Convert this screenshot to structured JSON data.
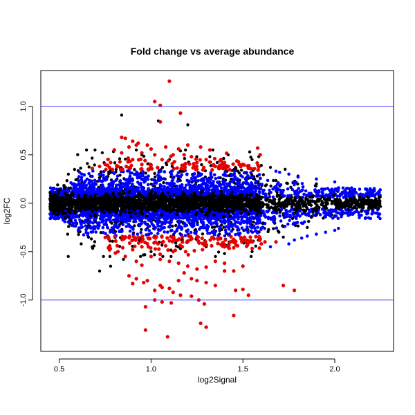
{
  "chart_data": {
    "type": "scatter",
    "title": "Fold change vs average abundance",
    "xlabel": "log2Signal",
    "ylabel": "log2FC",
    "xlim": [
      0.4,
      2.32
    ],
    "ylim": [
      -1.53,
      1.37
    ],
    "x_ticks": [
      0.5,
      1.0,
      1.5,
      2.0
    ],
    "x_tick_labels": [
      "0.5",
      "1.0",
      "1.5",
      "2.0"
    ],
    "y_ticks": [
      -1.0,
      -0.5,
      0.0,
      0.5,
      1.0
    ],
    "y_tick_labels": [
      "-1.0",
      "-0.5",
      "0.0",
      "0.5",
      "1.0"
    ],
    "hlines": [
      {
        "y": 1.0,
        "color": "#4040ff"
      },
      {
        "y": -1.0,
        "color": "#4040ff"
      }
    ],
    "grid": false,
    "legend": "none",
    "colors": {
      "black": "#000000",
      "blue": "#0000ff",
      "red": "#ee0000",
      "red_outline": "#cc0000"
    },
    "series": [
      {
        "color": "black",
        "points": [
          [
            0.84,
            0.91
          ],
          [
            1.04,
            0.85
          ],
          [
            1.2,
            0.81
          ],
          [
            0.92,
            0.55
          ],
          [
            0.95,
            0.5
          ],
          [
            1.16,
            0.54
          ],
          [
            1.32,
            0.48
          ],
          [
            1.36,
            0.42
          ],
          [
            1.42,
            0.5
          ],
          [
            1.55,
            0.45
          ],
          [
            1.6,
            0.39
          ],
          [
            1.65,
            0.37
          ],
          [
            0.55,
            0.3
          ],
          [
            0.6,
            0.25
          ],
          [
            0.78,
            0.34
          ],
          [
            0.88,
            0.44
          ],
          [
            1.0,
            0.4
          ],
          [
            1.1,
            0.45
          ],
          [
            1.73,
            0.35
          ],
          [
            1.8,
            0.28
          ],
          [
            1.9,
            0.2
          ],
          [
            2.0,
            0.13
          ],
          [
            2.1,
            0.08
          ],
          [
            2.2,
            0.03
          ],
          [
            0.72,
            -0.7
          ],
          [
            0.78,
            -0.65
          ],
          [
            0.85,
            -0.58
          ],
          [
            0.68,
            -0.45
          ],
          [
            0.62,
            -0.42
          ],
          [
            1.0,
            -0.5
          ],
          [
            1.16,
            -0.47
          ],
          [
            1.3,
            -0.45
          ],
          [
            1.4,
            -0.52
          ],
          [
            1.55,
            -0.5
          ],
          [
            1.72,
            -0.35
          ],
          [
            1.85,
            -0.25
          ],
          [
            2.0,
            -0.13
          ],
          [
            2.15,
            -0.05
          ]
        ],
        "band_samples": 2600
      },
      {
        "color": "blue",
        "band": "|log2FC| < 0.35, narrowing with signal",
        "points": [
          [
            1.65,
            -0.45
          ],
          [
            1.75,
            -0.42
          ],
          [
            1.78,
            -0.38
          ],
          [
            1.82,
            -0.36
          ],
          [
            1.85,
            -0.34
          ],
          [
            1.9,
            -0.32
          ],
          [
            1.95,
            -0.3
          ],
          [
            2.0,
            -0.28
          ],
          [
            1.7,
            0.32
          ],
          [
            1.75,
            0.3
          ],
          [
            1.8,
            0.27
          ],
          [
            1.9,
            0.25
          ],
          [
            2.0,
            0.22
          ],
          [
            2.02,
            -0.26
          ],
          [
            1.68,
            0.33
          ],
          [
            0.58,
            0.2
          ],
          [
            0.62,
            -0.22
          ]
        ],
        "band_samples": 2600
      },
      {
        "color": "red",
        "points": [
          [
            1.1,
            1.26
          ],
          [
            1.02,
            1.05
          ],
          [
            1.05,
            1.01
          ],
          [
            1.05,
            0.84
          ],
          [
            1.16,
            0.93
          ],
          [
            0.84,
            0.68
          ],
          [
            0.86,
            0.67
          ],
          [
            0.9,
            0.64
          ],
          [
            0.93,
            0.62
          ],
          [
            0.98,
            0.6
          ],
          [
            1.08,
            0.58
          ],
          [
            1.15,
            0.56
          ],
          [
            1.2,
            0.6
          ],
          [
            1.27,
            0.58
          ],
          [
            1.32,
            0.55
          ],
          [
            0.8,
            0.55
          ],
          [
            0.95,
            0.52
          ],
          [
            1.12,
            0.5
          ],
          [
            0.92,
            0.6
          ],
          [
            0.88,
            0.58
          ],
          [
            0.84,
            0.52
          ],
          [
            1.0,
            0.56
          ],
          [
            1.02,
            0.5
          ],
          [
            1.06,
            0.45
          ],
          [
            1.18,
            0.5
          ],
          [
            1.22,
            0.48
          ],
          [
            1.25,
            0.42
          ],
          [
            1.3,
            0.45
          ],
          [
            1.38,
            0.45
          ],
          [
            1.42,
            0.38
          ],
          [
            1.48,
            0.4
          ],
          [
            1.53,
            0.36
          ],
          [
            0.75,
            0.4
          ],
          [
            0.78,
            0.42
          ],
          [
            0.82,
            0.38
          ],
          [
            0.68,
            0.36
          ],
          [
            0.72,
            0.38
          ],
          [
            0.9,
            0.45
          ],
          [
            0.95,
            0.4
          ],
          [
            1.4,
            0.42
          ],
          [
            1.35,
            0.38
          ],
          [
            1.55,
            -0.4
          ],
          [
            1.6,
            -0.42
          ],
          [
            1.62,
            -0.4
          ],
          [
            1.68,
            -0.4
          ],
          [
            0.82,
            -0.5
          ],
          [
            0.86,
            -0.55
          ],
          [
            0.92,
            -0.6
          ],
          [
            0.95,
            -0.64
          ],
          [
            1.0,
            -0.55
          ],
          [
            1.05,
            -0.58
          ],
          [
            1.1,
            -0.6
          ],
          [
            1.15,
            -0.62
          ],
          [
            1.2,
            -0.65
          ],
          [
            1.25,
            -0.68
          ],
          [
            1.3,
            -0.66
          ],
          [
            1.35,
            -0.6
          ],
          [
            1.4,
            -0.62
          ],
          [
            1.45,
            -0.7
          ],
          [
            1.5,
            -0.65
          ],
          [
            0.88,
            -0.75
          ],
          [
            0.92,
            -0.78
          ],
          [
            0.96,
            -0.82
          ],
          [
            0.98,
            -0.8
          ],
          [
            1.05,
            -0.85
          ],
          [
            1.1,
            -0.88
          ],
          [
            1.15,
            -0.8
          ],
          [
            1.18,
            -0.72
          ],
          [
            1.22,
            -0.78
          ],
          [
            1.25,
            -0.8
          ],
          [
            1.3,
            -0.82
          ],
          [
            1.35,
            -0.85
          ],
          [
            1.4,
            -0.7
          ],
          [
            1.46,
            -0.9
          ],
          [
            0.9,
            -0.83
          ],
          [
            1.02,
            -0.9
          ],
          [
            1.06,
            -0.87
          ],
          [
            1.12,
            -0.92
          ],
          [
            1.16,
            -0.95
          ],
          [
            1.22,
            -0.96
          ],
          [
            1.5,
            -0.89
          ],
          [
            1.53,
            -0.95
          ],
          [
            1.72,
            -0.85
          ],
          [
            1.78,
            -0.9
          ],
          [
            0.98,
            -0.42
          ],
          [
            1.08,
            -0.44
          ],
          [
            1.12,
            -0.5
          ],
          [
            1.17,
            -0.45
          ],
          [
            1.28,
            -0.48
          ],
          [
            1.33,
            -0.44
          ],
          [
            1.4,
            -0.45
          ],
          [
            1.45,
            -0.46
          ],
          [
            0.95,
            -0.45
          ],
          [
            0.9,
            -0.48
          ],
          [
            0.97,
            -1.07
          ],
          [
            1.02,
            -1.0
          ],
          [
            1.06,
            -1.02
          ],
          [
            1.11,
            -1.03
          ],
          [
            1.26,
            -1.0
          ],
          [
            1.29,
            -1.04
          ],
          [
            1.45,
            -1.16
          ],
          [
            1.27,
            -1.24
          ],
          [
            1.3,
            -1.28
          ],
          [
            0.97,
            -1.31
          ],
          [
            1.09,
            -1.38
          ]
        ],
        "band_samples": 230
      }
    ]
  }
}
